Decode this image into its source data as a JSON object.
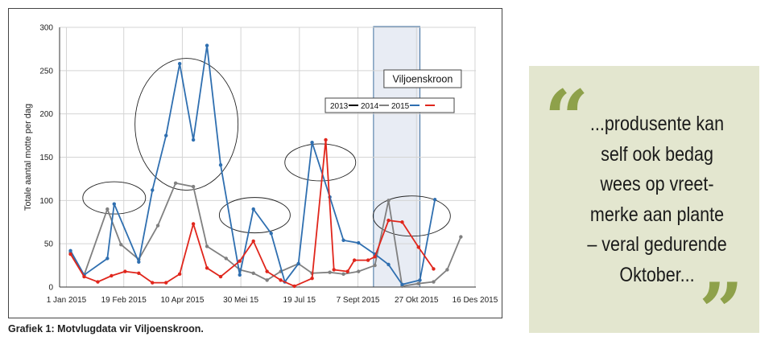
{
  "chart_data": {
    "type": "line",
    "title": "",
    "ylabel": "Totale aantal motte per dag",
    "xlabel": "",
    "ylim": [
      0,
      300
    ],
    "yticks": [
      0,
      50,
      100,
      150,
      200,
      250,
      300
    ],
    "xticks": [
      "1 Jan 2015",
      "19 Feb 2015",
      "10 Apr 2015",
      "30 Mei 15",
      "19 Jul 15",
      "7 Sept 2015",
      "27 Okt 2015",
      "16 Des 2015"
    ],
    "grid": true,
    "legend_position": "right",
    "highlight_label": "Viljoenskroon",
    "highlight_range": [
      225,
      259
    ],
    "series": [
      {
        "name": "2013",
        "color": "#000000",
        "points": []
      },
      {
        "name": "2014",
        "color": "#808080",
        "points": [
          [
            3,
            40
          ],
          [
            13,
            14
          ],
          [
            30,
            90
          ],
          [
            40,
            49
          ],
          [
            53,
            32
          ],
          [
            67,
            71
          ],
          [
            80,
            120
          ],
          [
            93,
            116
          ],
          [
            103,
            47
          ],
          [
            117,
            33
          ],
          [
            127,
            20
          ],
          [
            137,
            16
          ],
          [
            147,
            8
          ],
          [
            157,
            18
          ],
          [
            170,
            27
          ],
          [
            180,
            16
          ],
          [
            193,
            17
          ],
          [
            203,
            15
          ],
          [
            214,
            18
          ],
          [
            226,
            25
          ],
          [
            236,
            100
          ],
          [
            246,
            1
          ],
          [
            258,
            4
          ],
          [
            269,
            6
          ],
          [
            279,
            20
          ],
          [
            289,
            58
          ]
        ]
      },
      {
        "name": "2015",
        "color": "#2f6fb0",
        "points": [
          [
            3,
            42
          ],
          [
            13,
            14
          ],
          [
            30,
            33
          ],
          [
            35,
            96
          ],
          [
            53,
            29
          ],
          [
            63,
            112
          ],
          [
            73,
            175
          ],
          [
            83,
            258
          ],
          [
            93,
            170
          ],
          [
            103,
            279
          ],
          [
            113,
            141
          ],
          [
            127,
            14
          ],
          [
            137,
            90
          ],
          [
            150,
            62
          ],
          [
            160,
            6
          ],
          [
            170,
            27
          ],
          [
            180,
            167
          ],
          [
            193,
            104
          ],
          [
            203,
            54
          ],
          [
            214,
            51
          ],
          [
            226,
            38
          ],
          [
            236,
            26
          ],
          [
            246,
            3
          ],
          [
            259,
            8
          ],
          [
            270,
            101
          ]
        ]
      },
      {
        "name": "",
        "color": "#e0261c",
        "points": [
          [
            3,
            38
          ],
          [
            13,
            12
          ],
          [
            23,
            6
          ],
          [
            33,
            13
          ],
          [
            43,
            18
          ],
          [
            53,
            16
          ],
          [
            63,
            5
          ],
          [
            73,
            5
          ],
          [
            83,
            15
          ],
          [
            93,
            73
          ],
          [
            103,
            22
          ],
          [
            113,
            12
          ],
          [
            127,
            30
          ],
          [
            137,
            53
          ],
          [
            147,
            18
          ],
          [
            157,
            8
          ],
          [
            167,
            1
          ],
          [
            180,
            10
          ],
          [
            190,
            170
          ],
          [
            196,
            20
          ],
          [
            206,
            18
          ],
          [
            211,
            31
          ],
          [
            221,
            31
          ],
          [
            226,
            35
          ],
          [
            236,
            77
          ],
          [
            246,
            75
          ],
          [
            258,
            46
          ],
          [
            269,
            21
          ]
        ]
      }
    ],
    "ellipses": true
  },
  "caption": "Grafiek 1: Motvlugdata vir Viljoenskroon.",
  "quote": {
    "open_mark": "“",
    "close_mark": "”",
    "lines": [
      "...produsente kan",
      "self ook bedag",
      "wees op vreet-",
      "merke aan plante",
      "– veral gedurende",
      "Oktober..."
    ],
    "accent_color": "#8ea14a",
    "panel_color": "#e3e6cf"
  }
}
